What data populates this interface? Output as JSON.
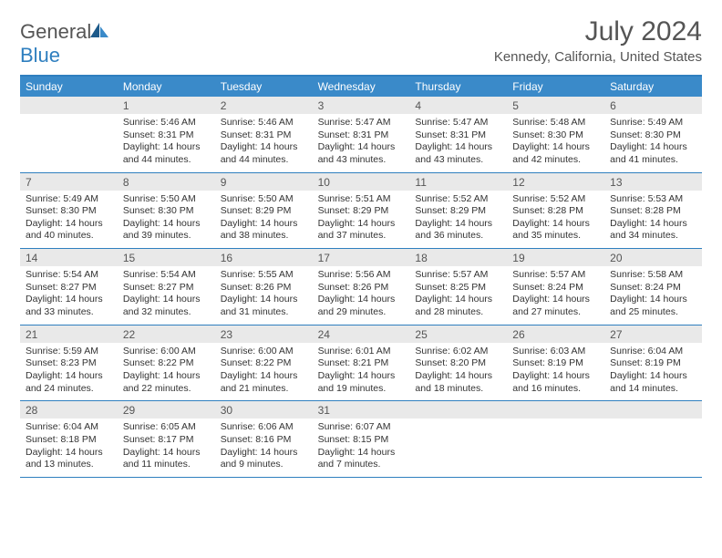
{
  "logo": {
    "text1": "General",
    "text2": "Blue"
  },
  "title": "July 2024",
  "locality": "Kennedy, California, United States",
  "colors": {
    "header_bg": "#3a8ac9",
    "border": "#2f7fbf",
    "daynum_bg": "#e9e9e9",
    "text": "#333333",
    "title_text": "#555555"
  },
  "day_names": [
    "Sunday",
    "Monday",
    "Tuesday",
    "Wednesday",
    "Thursday",
    "Friday",
    "Saturday"
  ],
  "weeks": [
    {
      "nums": [
        "",
        "1",
        "2",
        "3",
        "4",
        "5",
        "6"
      ],
      "cells": [
        null,
        {
          "sunrise": "Sunrise: 5:46 AM",
          "sunset": "Sunset: 8:31 PM",
          "day1": "Daylight: 14 hours",
          "day2": "and 44 minutes."
        },
        {
          "sunrise": "Sunrise: 5:46 AM",
          "sunset": "Sunset: 8:31 PM",
          "day1": "Daylight: 14 hours",
          "day2": "and 44 minutes."
        },
        {
          "sunrise": "Sunrise: 5:47 AM",
          "sunset": "Sunset: 8:31 PM",
          "day1": "Daylight: 14 hours",
          "day2": "and 43 minutes."
        },
        {
          "sunrise": "Sunrise: 5:47 AM",
          "sunset": "Sunset: 8:31 PM",
          "day1": "Daylight: 14 hours",
          "day2": "and 43 minutes."
        },
        {
          "sunrise": "Sunrise: 5:48 AM",
          "sunset": "Sunset: 8:30 PM",
          "day1": "Daylight: 14 hours",
          "day2": "and 42 minutes."
        },
        {
          "sunrise": "Sunrise: 5:49 AM",
          "sunset": "Sunset: 8:30 PM",
          "day1": "Daylight: 14 hours",
          "day2": "and 41 minutes."
        }
      ]
    },
    {
      "nums": [
        "7",
        "8",
        "9",
        "10",
        "11",
        "12",
        "13"
      ],
      "cells": [
        {
          "sunrise": "Sunrise: 5:49 AM",
          "sunset": "Sunset: 8:30 PM",
          "day1": "Daylight: 14 hours",
          "day2": "and 40 minutes."
        },
        {
          "sunrise": "Sunrise: 5:50 AM",
          "sunset": "Sunset: 8:30 PM",
          "day1": "Daylight: 14 hours",
          "day2": "and 39 minutes."
        },
        {
          "sunrise": "Sunrise: 5:50 AM",
          "sunset": "Sunset: 8:29 PM",
          "day1": "Daylight: 14 hours",
          "day2": "and 38 minutes."
        },
        {
          "sunrise": "Sunrise: 5:51 AM",
          "sunset": "Sunset: 8:29 PM",
          "day1": "Daylight: 14 hours",
          "day2": "and 37 minutes."
        },
        {
          "sunrise": "Sunrise: 5:52 AM",
          "sunset": "Sunset: 8:29 PM",
          "day1": "Daylight: 14 hours",
          "day2": "and 36 minutes."
        },
        {
          "sunrise": "Sunrise: 5:52 AM",
          "sunset": "Sunset: 8:28 PM",
          "day1": "Daylight: 14 hours",
          "day2": "and 35 minutes."
        },
        {
          "sunrise": "Sunrise: 5:53 AM",
          "sunset": "Sunset: 8:28 PM",
          "day1": "Daylight: 14 hours",
          "day2": "and 34 minutes."
        }
      ]
    },
    {
      "nums": [
        "14",
        "15",
        "16",
        "17",
        "18",
        "19",
        "20"
      ],
      "cells": [
        {
          "sunrise": "Sunrise: 5:54 AM",
          "sunset": "Sunset: 8:27 PM",
          "day1": "Daylight: 14 hours",
          "day2": "and 33 minutes."
        },
        {
          "sunrise": "Sunrise: 5:54 AM",
          "sunset": "Sunset: 8:27 PM",
          "day1": "Daylight: 14 hours",
          "day2": "and 32 minutes."
        },
        {
          "sunrise": "Sunrise: 5:55 AM",
          "sunset": "Sunset: 8:26 PM",
          "day1": "Daylight: 14 hours",
          "day2": "and 31 minutes."
        },
        {
          "sunrise": "Sunrise: 5:56 AM",
          "sunset": "Sunset: 8:26 PM",
          "day1": "Daylight: 14 hours",
          "day2": "and 29 minutes."
        },
        {
          "sunrise": "Sunrise: 5:57 AM",
          "sunset": "Sunset: 8:25 PM",
          "day1": "Daylight: 14 hours",
          "day2": "and 28 minutes."
        },
        {
          "sunrise": "Sunrise: 5:57 AM",
          "sunset": "Sunset: 8:24 PM",
          "day1": "Daylight: 14 hours",
          "day2": "and 27 minutes."
        },
        {
          "sunrise": "Sunrise: 5:58 AM",
          "sunset": "Sunset: 8:24 PM",
          "day1": "Daylight: 14 hours",
          "day2": "and 25 minutes."
        }
      ]
    },
    {
      "nums": [
        "21",
        "22",
        "23",
        "24",
        "25",
        "26",
        "27"
      ],
      "cells": [
        {
          "sunrise": "Sunrise: 5:59 AM",
          "sunset": "Sunset: 8:23 PM",
          "day1": "Daylight: 14 hours",
          "day2": "and 24 minutes."
        },
        {
          "sunrise": "Sunrise: 6:00 AM",
          "sunset": "Sunset: 8:22 PM",
          "day1": "Daylight: 14 hours",
          "day2": "and 22 minutes."
        },
        {
          "sunrise": "Sunrise: 6:00 AM",
          "sunset": "Sunset: 8:22 PM",
          "day1": "Daylight: 14 hours",
          "day2": "and 21 minutes."
        },
        {
          "sunrise": "Sunrise: 6:01 AM",
          "sunset": "Sunset: 8:21 PM",
          "day1": "Daylight: 14 hours",
          "day2": "and 19 minutes."
        },
        {
          "sunrise": "Sunrise: 6:02 AM",
          "sunset": "Sunset: 8:20 PM",
          "day1": "Daylight: 14 hours",
          "day2": "and 18 minutes."
        },
        {
          "sunrise": "Sunrise: 6:03 AM",
          "sunset": "Sunset: 8:19 PM",
          "day1": "Daylight: 14 hours",
          "day2": "and 16 minutes."
        },
        {
          "sunrise": "Sunrise: 6:04 AM",
          "sunset": "Sunset: 8:19 PM",
          "day1": "Daylight: 14 hours",
          "day2": "and 14 minutes."
        }
      ]
    },
    {
      "nums": [
        "28",
        "29",
        "30",
        "31",
        "",
        "",
        ""
      ],
      "cells": [
        {
          "sunrise": "Sunrise: 6:04 AM",
          "sunset": "Sunset: 8:18 PM",
          "day1": "Daylight: 14 hours",
          "day2": "and 13 minutes."
        },
        {
          "sunrise": "Sunrise: 6:05 AM",
          "sunset": "Sunset: 8:17 PM",
          "day1": "Daylight: 14 hours",
          "day2": "and 11 minutes."
        },
        {
          "sunrise": "Sunrise: 6:06 AM",
          "sunset": "Sunset: 8:16 PM",
          "day1": "Daylight: 14 hours",
          "day2": "and 9 minutes."
        },
        {
          "sunrise": "Sunrise: 6:07 AM",
          "sunset": "Sunset: 8:15 PM",
          "day1": "Daylight: 14 hours",
          "day2": "and 7 minutes."
        },
        null,
        null,
        null
      ]
    }
  ]
}
